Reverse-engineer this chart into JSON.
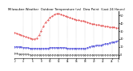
{
  "title": "Milwaukee Weather  Outdoor Temperature (vs)  Dew Point  (Last 24 Hours)",
  "title_fontsize": 2.8,
  "background_color": "#ffffff",
  "grid_color": "#aaaaaa",
  "temp_color": "#dd0000",
  "dew_color": "#0000cc",
  "black_color": "#000000",
  "ylim": [
    -5,
    55
  ],
  "yticks": [
    0,
    10,
    20,
    30,
    40,
    50
  ],
  "ytick_fontsize": 2.5,
  "xtick_fontsize": 2.0,
  "n_points": 48,
  "temp_data": [
    28,
    27,
    26,
    25,
    24,
    23,
    22,
    21,
    20,
    20,
    21,
    25,
    30,
    36,
    41,
    44,
    47,
    49,
    51,
    52,
    52,
    51,
    50,
    49,
    48,
    47,
    46,
    45,
    44,
    44,
    43,
    43,
    42,
    41,
    40,
    39,
    39,
    38,
    38,
    37,
    37,
    36,
    36,
    35,
    35,
    35,
    34,
    34
  ],
  "dew_data": [
    10,
    10,
    10,
    10,
    9,
    9,
    9,
    8,
    8,
    8,
    8,
    8,
    8,
    8,
    8,
    8,
    9,
    9,
    9,
    9,
    9,
    9,
    9,
    9,
    8,
    8,
    8,
    8,
    8,
    8,
    8,
    8,
    8,
    9,
    10,
    11,
    11,
    12,
    12,
    12,
    13,
    14,
    14,
    15,
    16,
    16,
    17,
    18
  ],
  "black_data": [
    2,
    2,
    1,
    1,
    1,
    1,
    1,
    0,
    0,
    0,
    0,
    0,
    0,
    0,
    0,
    0,
    0,
    0,
    0,
    0,
    0,
    0,
    0,
    0,
    0,
    0,
    0,
    0,
    0,
    0,
    0,
    0,
    0,
    0,
    0,
    0,
    0,
    0,
    0,
    0,
    0,
    0,
    0,
    0,
    0,
    0,
    0,
    0
  ],
  "x_tick_positions": [
    0,
    4,
    8,
    12,
    16,
    20,
    24,
    28,
    32,
    36,
    40,
    44,
    47
  ],
  "x_tick_labels": [
    "2",
    "4",
    "6",
    "8",
    "10",
    "12",
    "14",
    "16",
    "18",
    "20",
    "22",
    "24",
    "1"
  ],
  "vgrid_positions": [
    4,
    8,
    12,
    16,
    20,
    24,
    28,
    32,
    36,
    40,
    44
  ]
}
